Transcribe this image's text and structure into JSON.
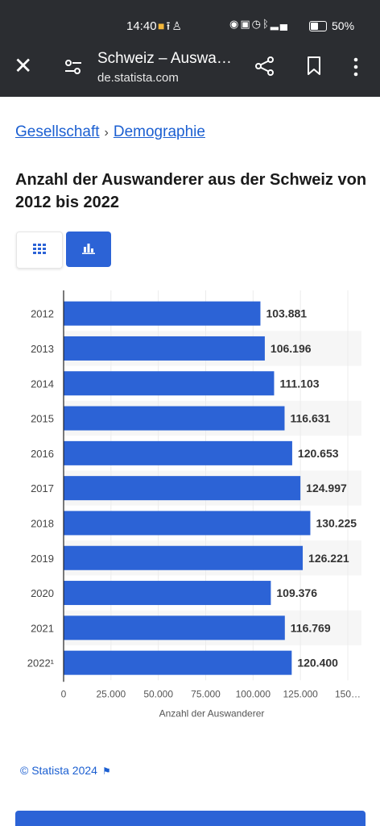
{
  "status_bar": {
    "time": "14:40",
    "battery": "50%",
    "notif_icons": [
      "app-notification-icon",
      "upload-icon",
      "person-icon"
    ],
    "system_icons": [
      "eye-icon",
      "nfc-icon",
      "alarm-icon",
      "bluetooth-icon",
      "signal-icon",
      "battery-icon"
    ]
  },
  "browser": {
    "title": "Schweiz – Auswa…",
    "url": "de.statista.com",
    "icons": [
      "close-icon",
      "tune-icon",
      "share-icon",
      "bookmark-icon",
      "more-icon"
    ]
  },
  "breadcrumb": {
    "items": [
      "Gesellschaft",
      "Demographie"
    ],
    "separator": "›"
  },
  "page": {
    "title": "Anzahl der Auswanderer aus der Schweiz von 2012 bis 2022"
  },
  "view_toggle": {
    "options": [
      "table-icon",
      "bar-chart-icon"
    ],
    "active": "bar-chart-icon"
  },
  "chart_data": {
    "type": "bar",
    "orientation": "horizontal",
    "categories": [
      "2012",
      "2013",
      "2014",
      "2015",
      "2016",
      "2017",
      "2018",
      "2019",
      "2020",
      "2021",
      "2022¹"
    ],
    "values": [
      103881,
      106196,
      111103,
      116631,
      120653,
      124997,
      130225,
      126221,
      109376,
      116769,
      120400
    ],
    "value_labels": [
      "103.881",
      "106.196",
      "111.103",
      "116.631",
      "120.653",
      "124.997",
      "130.225",
      "126.221",
      "109.376",
      "116.769",
      "120.400"
    ],
    "xlim": [
      0,
      150000
    ],
    "x_ticks": [
      0,
      25000,
      50000,
      75000,
      100000,
      125000,
      150000
    ],
    "x_tick_labels": [
      "0",
      "25.000",
      "50.000",
      "75.000",
      "100.000",
      "125.000",
      "150…"
    ],
    "xlabel": "Anzahl der Auswanderer",
    "ylabel": "",
    "title": "",
    "bar_color": "#2c63d6",
    "stripe_color": "#f6f6f6"
  },
  "footer": {
    "source": "© Statista 2024",
    "source_icon": "flag-icon"
  }
}
